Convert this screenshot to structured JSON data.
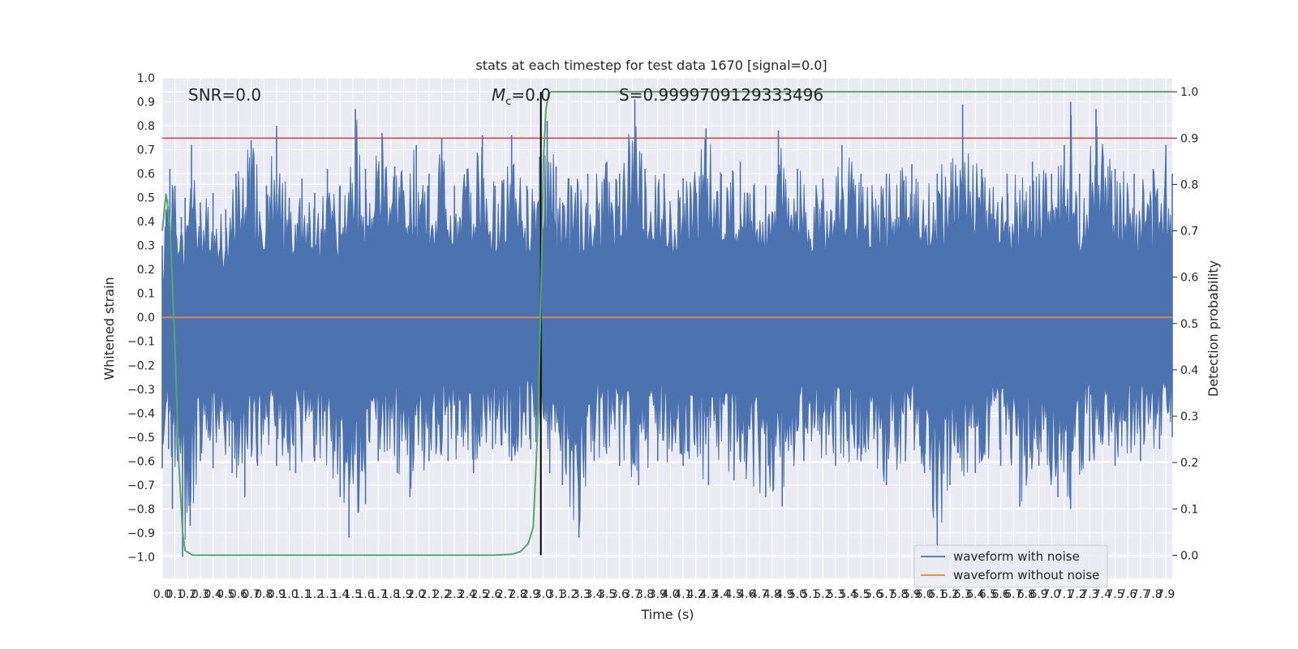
{
  "chart_data": {
    "type": "line",
    "title": "stats at each timestep for test data 1670 [signal=0.0]",
    "xlabel": "Time (s)",
    "ylabel": "Whitened strain",
    "y2label": "Detection probability",
    "xlim": [
      0.0,
      7.95
    ],
    "ylim": [
      -1.09,
      1.0
    ],
    "y2lim": [
      -0.05,
      1.03
    ],
    "grid": true,
    "legend_position": "lower-right",
    "x_tick_step": 0.1,
    "x_tick_max": 7.9,
    "y_ticks": [
      1.0,
      0.9,
      0.8,
      0.7,
      0.6,
      0.5,
      0.4,
      0.3,
      0.2,
      0.1,
      0.0,
      -0.1,
      -0.2,
      -0.3,
      -0.4,
      -0.5,
      -0.6,
      -0.7,
      -0.8,
      -0.9,
      -1.0
    ],
    "y2_ticks": [
      1.0,
      0.9,
      0.8,
      0.7,
      0.6,
      0.5,
      0.4,
      0.3,
      0.2,
      0.1,
      0.0
    ],
    "annotations": {
      "snr": "SNR=0.0",
      "mc_symbol": "M",
      "mc_subscript": "c",
      "mc_value": "=0.0",
      "s": "S=0.9999709129333496"
    },
    "event_marker_x": 2.98,
    "threshold_probability": 0.9,
    "colors": {
      "noisy": "#4c72b0",
      "clean": "#dd8452",
      "probability": "#55a868",
      "threshold": "#c44e52",
      "marker": "#000000",
      "panel": "#eaeaf2",
      "grid": "#ffffff"
    },
    "series": [
      {
        "name": "waveform with noise",
        "axis": "left",
        "envelope_upper": [
          [
            0.0,
            0.3
          ],
          [
            0.03,
            0.45
          ],
          [
            0.06,
            0.62
          ],
          [
            0.1,
            0.55
          ],
          [
            0.15,
            0.42
          ],
          [
            0.18,
            0.5
          ],
          [
            0.23,
            0.72
          ],
          [
            0.3,
            0.48
          ],
          [
            0.4,
            0.52
          ],
          [
            0.5,
            0.45
          ],
          [
            0.58,
            0.6
          ],
          [
            0.7,
            0.74
          ],
          [
            0.82,
            0.55
          ],
          [
            0.9,
            0.8
          ],
          [
            1.0,
            0.5
          ],
          [
            1.1,
            0.58
          ],
          [
            1.2,
            0.52
          ],
          [
            1.3,
            0.62
          ],
          [
            1.4,
            0.55
          ],
          [
            1.52,
            0.87
          ],
          [
            1.6,
            0.62
          ],
          [
            1.73,
            0.77
          ],
          [
            1.83,
            0.63
          ],
          [
            2.0,
            0.72
          ],
          [
            2.1,
            0.6
          ],
          [
            2.2,
            0.75
          ],
          [
            2.3,
            0.55
          ],
          [
            2.4,
            0.62
          ],
          [
            2.52,
            0.76
          ],
          [
            2.62,
            0.55
          ],
          [
            2.75,
            0.76
          ],
          [
            2.87,
            0.55
          ],
          [
            2.97,
            0.67
          ],
          [
            3.03,
            0.82
          ],
          [
            3.1,
            0.63
          ],
          [
            3.2,
            0.58
          ],
          [
            3.35,
            0.6
          ],
          [
            3.5,
            0.65
          ],
          [
            3.6,
            0.6
          ],
          [
            3.72,
            0.91
          ],
          [
            3.8,
            0.62
          ],
          [
            3.95,
            0.6
          ],
          [
            4.1,
            0.58
          ],
          [
            4.28,
            0.79
          ],
          [
            4.4,
            0.6
          ],
          [
            4.55,
            0.65
          ],
          [
            4.75,
            0.55
          ],
          [
            4.85,
            0.78
          ],
          [
            5.0,
            0.62
          ],
          [
            5.2,
            0.58
          ],
          [
            5.35,
            0.72
          ],
          [
            5.5,
            0.6
          ],
          [
            5.7,
            0.6
          ],
          [
            5.9,
            0.64
          ],
          [
            6.1,
            0.6
          ],
          [
            6.3,
            0.89
          ],
          [
            6.45,
            0.62
          ],
          [
            6.65,
            0.6
          ],
          [
            6.85,
            0.65
          ],
          [
            7.0,
            0.6
          ],
          [
            7.1,
            0.72
          ],
          [
            7.15,
            0.9
          ],
          [
            7.22,
            0.6
          ],
          [
            7.35,
            0.87
          ],
          [
            7.5,
            0.62
          ],
          [
            7.65,
            0.6
          ],
          [
            7.8,
            0.62
          ],
          [
            7.9,
            0.72
          ],
          [
            7.95,
            0.6
          ]
        ],
        "envelope_lower": [
          [
            0.0,
            -0.63
          ],
          [
            0.05,
            -0.55
          ],
          [
            0.08,
            -0.8
          ],
          [
            0.12,
            -0.6
          ],
          [
            0.16,
            -1.0
          ],
          [
            0.22,
            -0.87
          ],
          [
            0.3,
            -0.6
          ],
          [
            0.4,
            -0.63
          ],
          [
            0.55,
            -0.65
          ],
          [
            0.65,
            -0.75
          ],
          [
            0.75,
            -0.62
          ],
          [
            0.9,
            -0.62
          ],
          [
            1.05,
            -0.65
          ],
          [
            1.2,
            -0.6
          ],
          [
            1.4,
            -0.75
          ],
          [
            1.47,
            -0.92
          ],
          [
            1.6,
            -0.78
          ],
          [
            1.7,
            -0.6
          ],
          [
            1.85,
            -0.65
          ],
          [
            1.95,
            -0.75
          ],
          [
            2.1,
            -0.6
          ],
          [
            2.25,
            -0.6
          ],
          [
            2.45,
            -0.65
          ],
          [
            2.6,
            -0.55
          ],
          [
            2.75,
            -0.6
          ],
          [
            2.9,
            -0.55
          ],
          [
            3.05,
            -0.65
          ],
          [
            3.15,
            -0.7
          ],
          [
            3.28,
            -0.92
          ],
          [
            3.4,
            -0.6
          ],
          [
            3.6,
            -0.62
          ],
          [
            3.75,
            -0.7
          ],
          [
            3.9,
            -0.6
          ],
          [
            4.1,
            -0.62
          ],
          [
            4.3,
            -0.7
          ],
          [
            4.5,
            -0.68
          ],
          [
            4.75,
            -0.75
          ],
          [
            4.88,
            -0.79
          ],
          [
            5.05,
            -0.6
          ],
          [
            5.3,
            -0.62
          ],
          [
            5.5,
            -0.6
          ],
          [
            5.7,
            -0.7
          ],
          [
            5.85,
            -0.6
          ],
          [
            6.0,
            -0.65
          ],
          [
            6.1,
            -0.98
          ],
          [
            6.2,
            -0.7
          ],
          [
            6.4,
            -0.65
          ],
          [
            6.6,
            -0.62
          ],
          [
            6.75,
            -0.79
          ],
          [
            6.9,
            -0.62
          ],
          [
            7.05,
            -0.75
          ],
          [
            7.15,
            -0.8
          ],
          [
            7.3,
            -0.6
          ],
          [
            7.5,
            -0.62
          ],
          [
            7.7,
            -0.6
          ],
          [
            7.85,
            -0.55
          ],
          [
            7.95,
            -0.5
          ]
        ]
      },
      {
        "name": "waveform without noise",
        "axis": "left",
        "x": [
          0.0,
          7.95
        ],
        "y": [
          0.0,
          0.0
        ]
      },
      {
        "axis": "right",
        "x": [
          0.0,
          0.03,
          0.06,
          0.1,
          0.13,
          0.16,
          0.18,
          0.24,
          0.6,
          1.5,
          2.6,
          2.75,
          2.82,
          2.88,
          2.92,
          2.96,
          2.98,
          3.0,
          3.02,
          3.04,
          3.06,
          3.1,
          3.5,
          7.95
        ],
        "y": [
          0.7,
          0.78,
          0.72,
          0.45,
          0.2,
          0.05,
          0.01,
          0.0,
          0.0,
          0.0,
          0.0,
          0.002,
          0.008,
          0.025,
          0.06,
          0.3,
          0.55,
          0.85,
          0.96,
          0.995,
          1.0,
          1.0,
          1.0,
          1.0
        ]
      }
    ]
  }
}
